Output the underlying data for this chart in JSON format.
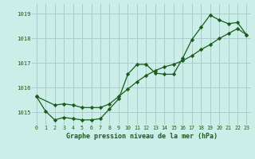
{
  "title": "Graphe pression niveau de la mer (hPa)",
  "background_color": "#cceee8",
  "grid_color": "#aacccc",
  "line_color": "#1a5c1a",
  "marker_color": "#1a5c1a",
  "xlim": [
    -0.5,
    23.5
  ],
  "ylim": [
    1014.5,
    1019.4
  ],
  "yticks": [
    1015,
    1016,
    1017,
    1018,
    1019
  ],
  "xticks": [
    0,
    1,
    2,
    3,
    4,
    5,
    6,
    7,
    8,
    9,
    10,
    11,
    12,
    13,
    14,
    15,
    16,
    17,
    18,
    19,
    20,
    21,
    22,
    23
  ],
  "series1_x": [
    0,
    1,
    2,
    3,
    4,
    5,
    6,
    7,
    8,
    9,
    10,
    11,
    12,
    13,
    14,
    15,
    16,
    17,
    18,
    19,
    20,
    21,
    22,
    23
  ],
  "series1_y": [
    1015.65,
    1015.05,
    1014.7,
    1014.8,
    1014.75,
    1014.7,
    1014.7,
    1014.75,
    1015.15,
    1015.55,
    1016.55,
    1016.95,
    1016.95,
    1016.6,
    1016.55,
    1016.55,
    1017.2,
    1017.95,
    1018.45,
    1018.95,
    1018.75,
    1018.6,
    1018.65,
    1018.15
  ],
  "series2_x": [
    0,
    2,
    3,
    4,
    5,
    6,
    7,
    8,
    9,
    10,
    11,
    12,
    13,
    14,
    15,
    16,
    17,
    18,
    19,
    20,
    21,
    22,
    23
  ],
  "series2_y": [
    1015.65,
    1015.3,
    1015.35,
    1015.3,
    1015.2,
    1015.2,
    1015.2,
    1015.35,
    1015.65,
    1015.95,
    1016.25,
    1016.5,
    1016.7,
    1016.85,
    1016.95,
    1017.1,
    1017.3,
    1017.55,
    1017.75,
    1018.0,
    1018.2,
    1018.4,
    1018.15
  ]
}
